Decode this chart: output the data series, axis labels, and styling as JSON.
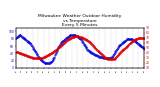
{
  "title": "Milwaukee Weather Outdoor Humidity\nvs Temperature\nEvery 5 Minutes",
  "title_fontsize": 3.2,
  "bg_color": "#ffffff",
  "blue_color": "#0000dd",
  "red_color": "#dd0000",
  "ylim_left": [
    0,
    110
  ],
  "ylim_right": [
    10,
    90
  ],
  "grid_color": "#bbbbbb",
  "n_points": 288,
  "humidity": [
    82,
    83,
    84,
    85,
    86,
    87,
    88,
    89,
    90,
    90,
    89,
    88,
    87,
    86,
    85,
    84,
    83,
    82,
    81,
    80,
    79,
    78,
    77,
    76,
    75,
    74,
    73,
    72,
    71,
    70,
    69,
    68,
    67,
    65,
    63,
    61,
    59,
    57,
    55,
    53,
    51,
    49,
    47,
    45,
    43,
    41,
    39,
    37,
    35,
    33,
    31,
    29,
    27,
    25,
    24,
    23,
    22,
    21,
    20,
    19,
    18,
    17,
    16,
    15,
    14,
    14,
    13,
    13,
    12,
    12,
    12,
    12,
    12,
    12,
    13,
    13,
    14,
    15,
    16,
    17,
    18,
    20,
    22,
    24,
    26,
    28,
    31,
    34,
    37,
    40,
    43,
    46,
    49,
    52,
    55,
    57,
    59,
    61,
    63,
    65,
    67,
    69,
    71,
    72,
    73,
    74,
    75,
    76,
    77,
    78,
    79,
    80,
    81,
    82,
    83,
    84,
    85,
    86,
    87,
    88,
    89,
    90,
    90,
    91,
    91,
    91,
    91,
    91,
    91,
    90,
    90,
    90,
    89,
    89,
    88,
    88,
    87,
    87,
    86,
    85,
    84,
    83,
    82,
    81,
    80,
    79,
    78,
    76,
    74,
    72,
    70,
    68,
    66,
    64,
    62,
    60,
    58,
    56,
    54,
    52,
    50,
    49,
    48,
    47,
    46,
    45,
    44,
    43,
    43,
    42,
    41,
    40,
    40,
    39,
    38,
    37,
    37,
    36,
    35,
    35,
    34,
    34,
    33,
    33,
    32,
    32,
    31,
    31,
    31,
    30,
    30,
    30,
    29,
    29,
    29,
    29,
    28,
    28,
    28,
    28,
    27,
    27,
    27,
    27,
    27,
    27,
    26,
    26,
    26,
    26,
    26,
    27,
    27,
    28,
    29,
    30,
    31,
    33,
    35,
    37,
    39,
    41,
    43,
    45,
    47,
    49,
    51,
    53,
    55,
    57,
    59,
    61,
    62,
    63,
    64,
    65,
    66,
    67,
    68,
    69,
    70,
    71,
    72,
    73,
    74,
    75,
    76,
    77,
    78,
    78,
    79,
    79,
    80,
    80,
    80,
    80,
    80,
    80,
    79,
    79,
    78,
    78,
    77,
    77,
    76,
    75,
    74,
    73,
    72,
    71,
    70,
    69,
    68,
    67,
    66,
    65,
    64,
    63,
    62,
    61,
    60,
    59,
    58,
    57,
    56,
    55,
    54,
    53
  ],
  "temperature": [
    42,
    42,
    42,
    41,
    41,
    41,
    40,
    40,
    40,
    39,
    39,
    39,
    38,
    38,
    38,
    37,
    37,
    37,
    36,
    36,
    36,
    35,
    35,
    35,
    34,
    34,
    34,
    33,
    33,
    33,
    32,
    32,
    32,
    31,
    31,
    31,
    30,
    30,
    30,
    29,
    29,
    29,
    29,
    29,
    29,
    29,
    29,
    29,
    29,
    29,
    29,
    29,
    29,
    29,
    29,
    29,
    29,
    30,
    30,
    30,
    30,
    31,
    31,
    31,
    32,
    32,
    33,
    33,
    34,
    34,
    35,
    35,
    36,
    36,
    37,
    37,
    38,
    38,
    39,
    39,
    40,
    40,
    41,
    42,
    42,
    43,
    43,
    44,
    45,
    45,
    46,
    47,
    47,
    48,
    49,
    50,
    51,
    51,
    52,
    53,
    54,
    55,
    55,
    56,
    57,
    58,
    58,
    59,
    60,
    61,
    62,
    63,
    63,
    64,
    65,
    65,
    66,
    67,
    67,
    68,
    68,
    69,
    69,
    70,
    70,
    71,
    71,
    71,
    72,
    72,
    72,
    73,
    73,
    73,
    73,
    73,
    73,
    73,
    73,
    73,
    73,
    72,
    72,
    72,
    72,
    71,
    71,
    71,
    70,
    70,
    70,
    69,
    69,
    68,
    68,
    67,
    67,
    66,
    66,
    65,
    65,
    64,
    64,
    63,
    62,
    62,
    61,
    60,
    59,
    58,
    57,
    56,
    55,
    54,
    53,
    52,
    51,
    50,
    49,
    48,
    47,
    46,
    45,
    44,
    43,
    43,
    42,
    41,
    40,
    40,
    39,
    38,
    37,
    36,
    35,
    34,
    33,
    33,
    32,
    31,
    30,
    30,
    29,
    29,
    29,
    28,
    28,
    28,
    27,
    27,
    27,
    27,
    27,
    27,
    27,
    27,
    27,
    27,
    27,
    27,
    28,
    28,
    29,
    30,
    31,
    32,
    33,
    34,
    35,
    36,
    37,
    38,
    39,
    40,
    41,
    42,
    43,
    44,
    45,
    45,
    46,
    47,
    48,
    48,
    49,
    50,
    51,
    52,
    52,
    53,
    54,
    55,
    56,
    57,
    58,
    59,
    59,
    60,
    61,
    62,
    63,
    63,
    64,
    65,
    65,
    66,
    66,
    67,
    67,
    67,
    68,
    68,
    68,
    69,
    69,
    69,
    70,
    70,
    70,
    70,
    70,
    70,
    70,
    70,
    70,
    70,
    69,
    69
  ]
}
